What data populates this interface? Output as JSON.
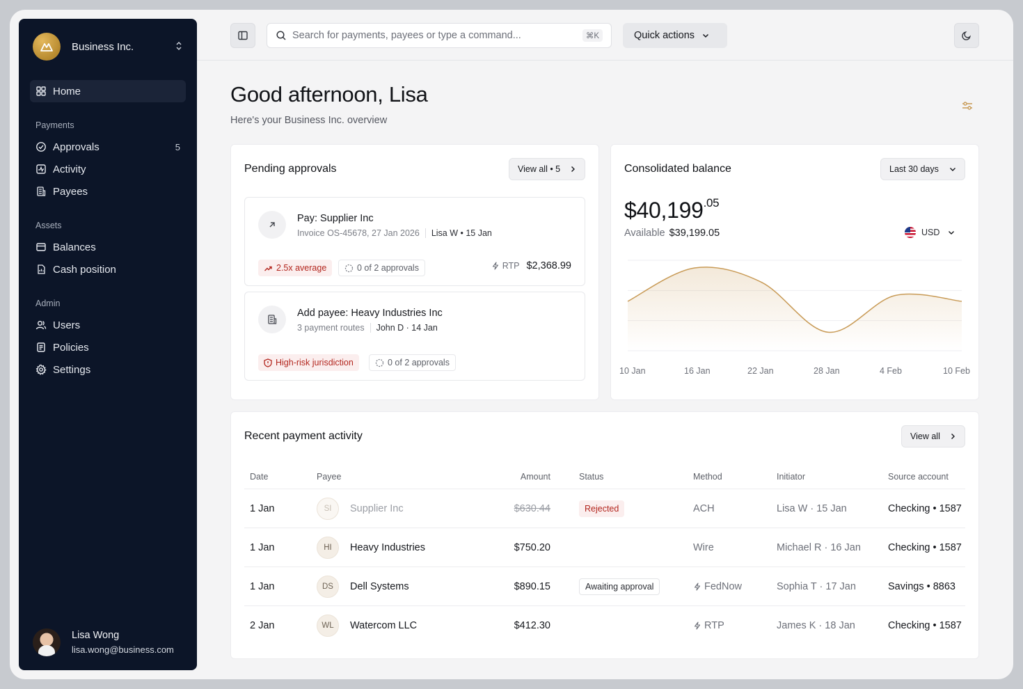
{
  "org": {
    "name": "Business Inc."
  },
  "nav": {
    "home": "Home",
    "payments_section": "Payments",
    "approvals": "Approvals",
    "approvals_count": "5",
    "activity": "Activity",
    "payees": "Payees",
    "assets_section": "Assets",
    "balances": "Balances",
    "cash_position": "Cash position",
    "admin_section": "Admin",
    "users": "Users",
    "policies": "Policies",
    "settings": "Settings"
  },
  "user": {
    "name": "Lisa Wong",
    "email": "lisa.wong@business.com"
  },
  "topbar": {
    "search_placeholder": "Search for payments, payees or type a command...",
    "search_shortcut": "⌘K",
    "quick_actions": "Quick actions"
  },
  "header": {
    "greeting": "Good afternoon, Lisa",
    "subtitle": "Here's your  Business Inc. overview"
  },
  "pending": {
    "title": "Pending approvals",
    "view_all": "View all • 5",
    "items": [
      {
        "title": "Pay: Supplier Inc",
        "meta": "Invoice OS-45678, 27 Jan 2026",
        "by": "Lisa W • 15 Jan",
        "tag": "2.5x average",
        "approvals": "0 of 2 approvals",
        "method": "RTP",
        "amount": "$2,368.99"
      },
      {
        "title": "Add payee: Heavy Industries Inc",
        "meta": "3 payment routes",
        "by": "John D · 14 Jan",
        "tag": "High-risk jurisdiction",
        "approvals": "0 of 2 approvals"
      }
    ]
  },
  "balance": {
    "title": "Consolidated balance",
    "range": "Last 30 days",
    "amount_main": "$40,199",
    "amount_cents": ".05",
    "available_label": "Available",
    "available_value": "$39,199.05",
    "currency": "USD",
    "accent": "#c89a55"
  },
  "chart_data": {
    "type": "area",
    "x_labels": [
      "10 Jan",
      "16 Jan",
      "22 Jan",
      "28 Jan",
      "4 Feb",
      "10 Feb"
    ],
    "series": [
      {
        "values": [
          0.55,
          0.95,
          0.78,
          0.18,
          0.62,
          0.55
        ]
      }
    ],
    "ylim": [
      0,
      1
    ],
    "grid": true
  },
  "activity": {
    "title": "Recent payment activity",
    "view_all": "View all",
    "columns": [
      "Date",
      "Payee",
      "Amount",
      "Status",
      "Method",
      "Initiator",
      "Source account"
    ],
    "rows": [
      {
        "date": "1 Jan",
        "initials": "SI",
        "payee": "Supplier Inc",
        "amount": "$630.44",
        "status": "Rejected",
        "method": "ACH",
        "initiator": "Lisa W · 15 Jan",
        "account": "Checking • 1587"
      },
      {
        "date": "1 Jan",
        "initials": "HI",
        "payee": "Heavy Industries",
        "amount": "$750.20",
        "status": "",
        "method": "Wire",
        "initiator": "Michael R · 16 Jan",
        "account": "Checking • 1587"
      },
      {
        "date": "1 Jan",
        "initials": "DS",
        "payee": "Dell Systems",
        "amount": "$890.15",
        "status": "Awaiting approval",
        "method": "FedNow",
        "initiator": "Sophia T · 17 Jan",
        "account": "Savings • 8863"
      },
      {
        "date": "2 Jan",
        "initials": "WL",
        "payee": "Watercom LLC",
        "amount": "$412.30",
        "status": "",
        "method": "RTP",
        "initiator": "James K · 18 Jan",
        "account": "Checking • 1587"
      }
    ]
  }
}
